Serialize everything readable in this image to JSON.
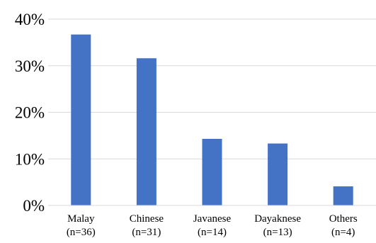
{
  "chart_data": {
    "type": "bar",
    "categories": [
      "Malay",
      "Chinese",
      "Javanese",
      "Dayaknese",
      "Others"
    ],
    "category_sublabels": [
      "(n=36)",
      "(n=31)",
      "(n=14)",
      "(n=13)",
      "(n=4)"
    ],
    "values": [
      36.7,
      31.6,
      14.3,
      13.3,
      4.1
    ],
    "ylim": [
      0,
      40
    ],
    "yticks": [
      0,
      10,
      20,
      30,
      40
    ],
    "ytick_labels": [
      "0%",
      "10%",
      "20%",
      "30%",
      "40%"
    ],
    "grid": true,
    "bar_color": "#4472C4",
    "grid_color": "#d9d9d9"
  }
}
